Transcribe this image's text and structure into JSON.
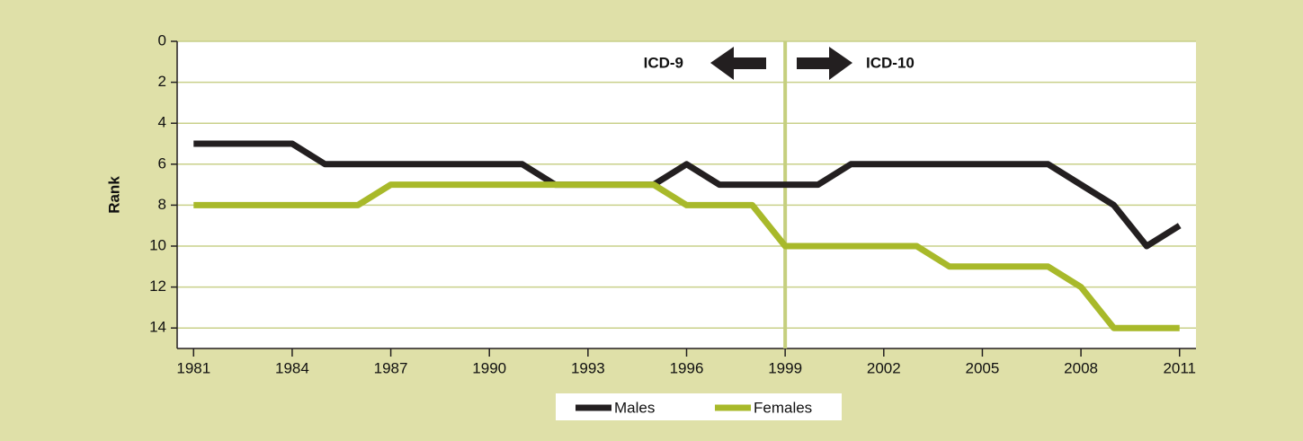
{
  "chart_data": {
    "type": "line",
    "y_label": "Rank",
    "x": [
      1981,
      1982,
      1983,
      1984,
      1985,
      1986,
      1987,
      1988,
      1989,
      1990,
      1991,
      1992,
      1993,
      1994,
      1995,
      1996,
      1997,
      1998,
      1999,
      2000,
      2001,
      2002,
      2003,
      2004,
      2005,
      2006,
      2007,
      2008,
      2009,
      2010,
      2011
    ],
    "series": [
      {
        "name": "Males",
        "color": "#231f20",
        "values": [
          5,
          5,
          5,
          5,
          6,
          6,
          6,
          6,
          6,
          6,
          6,
          7,
          7,
          7,
          7,
          6,
          7,
          7,
          7,
          7,
          6,
          6,
          6,
          6,
          6,
          6,
          6,
          7,
          8,
          10,
          9
        ]
      },
      {
        "name": "Females",
        "color": "#a8b92a",
        "values": [
          8,
          8,
          8,
          8,
          8,
          8,
          7,
          7,
          7,
          7,
          7,
          7,
          7,
          7,
          7,
          8,
          8,
          8,
          10,
          10,
          10,
          10,
          10,
          11,
          11,
          11,
          11,
          12,
          14,
          14,
          14
        ]
      }
    ],
    "xlim": [
      1980.5,
      2011.5
    ],
    "xticks": [
      1981,
      1984,
      1987,
      1990,
      1993,
      1996,
      1999,
      2002,
      2005,
      2008,
      2011
    ],
    "ylim": [
      0,
      15
    ],
    "y_reversed": true,
    "yticks": [
      0,
      2,
      4,
      6,
      8,
      10,
      12,
      14
    ],
    "grid": true,
    "divider": 1999,
    "annotations": [
      "ICD-9",
      "ICD-10"
    ]
  }
}
